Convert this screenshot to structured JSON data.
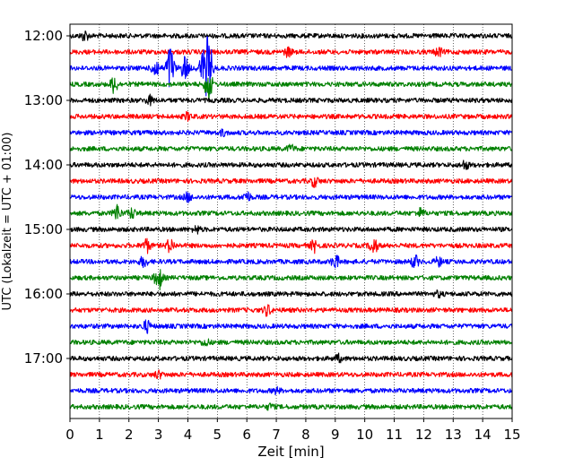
{
  "chart_data": {
    "type": "line",
    "xlabel": "Zeit  [min]",
    "ylabel": "UTC (Lokalzeit = UTC + 01:00)",
    "xlim": [
      0,
      15
    ],
    "x_ticks": [
      "0",
      "1",
      "2",
      "3",
      "4",
      "5",
      "6",
      "7",
      "8",
      "9",
      "10",
      "11",
      "12",
      "13",
      "14",
      "15"
    ],
    "y_ticks": [
      "12:00",
      "13:00",
      "14:00",
      "15:00",
      "16:00",
      "17:00"
    ],
    "grid": "vertical dotted",
    "colors": [
      "#000000",
      "#ff0000",
      "#0000ff",
      "#008000"
    ],
    "traces": [
      {
        "start": "12:00",
        "color": "#000000",
        "events": [
          {
            "t": 0.5,
            "a": 0.6
          }
        ]
      },
      {
        "start": "12:15",
        "color": "#ff0000",
        "events": [
          {
            "t": 7.4,
            "a": 0.5
          },
          {
            "t": 12.5,
            "a": 0.5
          }
        ]
      },
      {
        "start": "12:30",
        "color": "#0000ff",
        "events": [
          {
            "t": 2.9,
            "a": 1.2
          },
          {
            "t": 3.4,
            "a": 2.8
          },
          {
            "t": 3.9,
            "a": 1.5
          },
          {
            "t": 4.5,
            "a": 1.8
          },
          {
            "t": 4.7,
            "a": 4.0
          }
        ]
      },
      {
        "start": "12:45",
        "color": "#008000",
        "events": [
          {
            "t": 1.5,
            "a": 1.0
          },
          {
            "t": 4.7,
            "a": 2.0
          }
        ]
      },
      {
        "start": "13:00",
        "color": "#000000",
        "events": [
          {
            "t": 2.7,
            "a": 0.5
          }
        ]
      },
      {
        "start": "13:15",
        "color": "#ff0000",
        "events": [
          {
            "t": 4.0,
            "a": 0.4
          }
        ]
      },
      {
        "start": "13:30",
        "color": "#0000ff",
        "events": [
          {
            "t": 5.2,
            "a": 0.3
          }
        ]
      },
      {
        "start": "13:45",
        "color": "#008000",
        "events": [
          {
            "t": 7.5,
            "a": 0.4
          }
        ]
      },
      {
        "start": "14:00",
        "color": "#000000",
        "events": [
          {
            "t": 13.4,
            "a": 0.5
          }
        ]
      },
      {
        "start": "14:15",
        "color": "#ff0000",
        "events": [
          {
            "t": 8.3,
            "a": 0.6
          }
        ]
      },
      {
        "start": "14:30",
        "color": "#0000ff",
        "events": [
          {
            "t": 4.0,
            "a": 0.5
          },
          {
            "t": 6.0,
            "a": 0.6
          }
        ]
      },
      {
        "start": "14:45",
        "color": "#008000",
        "events": [
          {
            "t": 1.6,
            "a": 1.0
          },
          {
            "t": 2.1,
            "a": 0.6
          },
          {
            "t": 11.9,
            "a": 0.5
          }
        ]
      },
      {
        "start": "15:00",
        "color": "#000000",
        "events": [
          {
            "t": 4.3,
            "a": 0.4
          }
        ]
      },
      {
        "start": "15:15",
        "color": "#ff0000",
        "events": [
          {
            "t": 2.6,
            "a": 0.8
          },
          {
            "t": 3.4,
            "a": 0.8
          },
          {
            "t": 8.3,
            "a": 0.7
          },
          {
            "t": 10.3,
            "a": 1.0
          }
        ]
      },
      {
        "start": "15:30",
        "color": "#0000ff",
        "events": [
          {
            "t": 2.5,
            "a": 0.6
          },
          {
            "t": 9.0,
            "a": 0.8
          },
          {
            "t": 11.7,
            "a": 0.7
          },
          {
            "t": 12.5,
            "a": 0.5
          }
        ]
      },
      {
        "start": "15:45",
        "color": "#008000",
        "events": [
          {
            "t": 3.0,
            "a": 1.5
          }
        ]
      },
      {
        "start": "16:00",
        "color": "#000000",
        "events": [
          {
            "t": 12.5,
            "a": 0.3
          }
        ]
      },
      {
        "start": "16:15",
        "color": "#ff0000",
        "events": [
          {
            "t": 6.7,
            "a": 0.6
          }
        ]
      },
      {
        "start": "16:30",
        "color": "#0000ff",
        "events": [
          {
            "t": 2.6,
            "a": 0.7
          }
        ]
      },
      {
        "start": "16:45",
        "color": "#008000",
        "events": [
          {
            "t": 4.6,
            "a": 0.4
          }
        ]
      },
      {
        "start": "17:00",
        "color": "#000000",
        "events": [
          {
            "t": 9.1,
            "a": 0.4
          }
        ]
      },
      {
        "start": "17:15",
        "color": "#ff0000",
        "events": [
          {
            "t": 3.0,
            "a": 0.4
          }
        ]
      },
      {
        "start": "17:30",
        "color": "#0000ff",
        "events": [
          {
            "t": 7.0,
            "a": 0.3
          }
        ]
      },
      {
        "start": "17:45",
        "color": "#008000",
        "events": [
          {
            "t": 6.8,
            "a": 0.3
          }
        ]
      }
    ]
  }
}
